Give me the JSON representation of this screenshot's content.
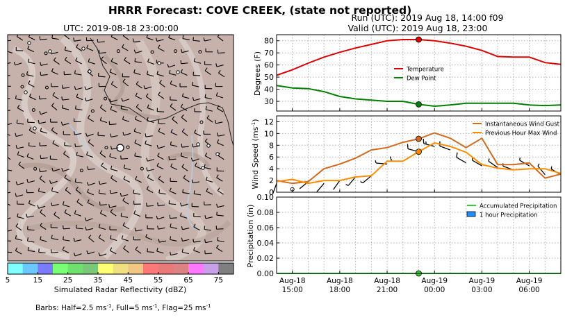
{
  "figure": {
    "title": "HRRR Forecast: COVE CREEK, (state not reported)",
    "run_label": "Run (UTC): 2019 Aug 18, 14:00 f09",
    "valid_label": "Valid (UTC): 2019 Aug 18, 23:00"
  },
  "map": {
    "title": "UTC: 2019-08-18 23:00:00",
    "colorbar_label": "Simulated Radar Reflectivity (dBZ)",
    "colorbar_ticks": [
      "5",
      "15",
      "25",
      "35",
      "45",
      "55",
      "65",
      "75"
    ],
    "colorbar_colors": [
      "#80ffff",
      "#6ac8ff",
      "#7b7bff",
      "#79ff73",
      "#6ee06e",
      "#78c878",
      "#ffff73",
      "#f0e082",
      "#f0c882",
      "#ff7878",
      "#ea7a7a",
      "#dc8282",
      "#ff78ff",
      "#c8a0e8",
      "#7f7f7f"
    ],
    "barbs_note": "Barbs: Half=2.5 ms",
    "barbs_note_mid": ", Full=5 ms",
    "barbs_note_end": ", Flag=25 ms",
    "barbs_sup": "-1"
  },
  "x_tick_labels": [
    {
      "line1": "Aug-18",
      "line2": "15:00"
    },
    {
      "line1": "Aug-18",
      "line2": "18:00"
    },
    {
      "line1": "Aug-18",
      "line2": "21:00"
    },
    {
      "line1": "Aug-19",
      "line2": "00:00"
    },
    {
      "line1": "Aug-19",
      "line2": "03:00"
    },
    {
      "line1": "Aug-19",
      "line2": "06:00"
    }
  ],
  "colors": {
    "temperature": "#dd0000",
    "dew_point": "#008000",
    "wind_gust": "#d2691e",
    "max_wind": "#ff8c00",
    "accum_precip": "#33cc33",
    "hourly_precip": "#1e90ff"
  },
  "chart_data": [
    {
      "type": "line",
      "panel": "temperature",
      "x": [
        "2019-08-18 14:00",
        "2019-08-18 15:00",
        "2019-08-18 16:00",
        "2019-08-18 17:00",
        "2019-08-18 18:00",
        "2019-08-18 19:00",
        "2019-08-18 20:00",
        "2019-08-18 21:00",
        "2019-08-18 22:00",
        "2019-08-18 23:00",
        "2019-08-19 00:00",
        "2019-08-19 01:00",
        "2019-08-19 02:00",
        "2019-08-19 03:00",
        "2019-08-19 04:00",
        "2019-08-19 05:00",
        "2019-08-19 06:00",
        "2019-08-19 07:00",
        "2019-08-19 08:00"
      ],
      "ylabel": "Degrees (F)",
      "ylim": [
        22,
        85
      ],
      "yticks": [
        30,
        40,
        50,
        60,
        70,
        80
      ],
      "grid": true,
      "legend": "center",
      "highlight_x": "2019-08-18 23:00",
      "series": [
        {
          "name": "Temperature",
          "values": [
            51.5,
            56,
            61.5,
            66.5,
            70.5,
            74,
            77,
            80,
            81,
            81,
            80,
            78,
            75.5,
            72,
            67,
            66.5,
            66.5,
            62,
            60.5
          ]
        },
        {
          "name": "Dew Point",
          "values": [
            43,
            41,
            40.5,
            38,
            34,
            32,
            31,
            30,
            30,
            27.5,
            26,
            27,
            28.5,
            28.5,
            28.5,
            28.5,
            27,
            26.5,
            27
          ]
        }
      ]
    },
    {
      "type": "line",
      "panel": "wind",
      "x": [
        "2019-08-18 14:00",
        "2019-08-18 15:00",
        "2019-08-18 16:00",
        "2019-08-18 17:00",
        "2019-08-18 18:00",
        "2019-08-18 19:00",
        "2019-08-18 20:00",
        "2019-08-18 21:00",
        "2019-08-18 22:00",
        "2019-08-18 23:00",
        "2019-08-19 00:00",
        "2019-08-19 01:00",
        "2019-08-19 02:00",
        "2019-08-19 03:00",
        "2019-08-19 04:00",
        "2019-08-19 05:00",
        "2019-08-19 06:00",
        "2019-08-19 07:00",
        "2019-08-19 08:00"
      ],
      "ylabel": "Wind Speed (ms",
      "ylabel_sup": "-1",
      "ylabel_end": ")",
      "ylim": [
        0,
        13
      ],
      "yticks": [
        0,
        2,
        4,
        6,
        8,
        10,
        12
      ],
      "grid": true,
      "legend": "top-right",
      "highlight_x": "2019-08-18 23:00",
      "series": [
        {
          "name": "Instantaneous Wind Gust",
          "values": [
            2,
            1.5,
            1.8,
            4,
            4.8,
            5.8,
            7.2,
            7.6,
            8.5,
            9.1,
            10.1,
            9.2,
            7.6,
            9.2,
            4.7,
            4.7,
            5,
            2.4,
            3.1
          ]
        },
        {
          "name": "Previous Hour Max Wind",
          "values": [
            1.8,
            2.2,
            1.5,
            2,
            2,
            2.6,
            2.8,
            5.3,
            5.3,
            6.9,
            8.4,
            7.8,
            6.8,
            4.7,
            4.1,
            3.8,
            4,
            4,
            3.2
          ]
        }
      ],
      "barbs": [
        {
          "x": "2019-08-18 14:00",
          "speed": 1.5,
          "dir": 200
        },
        {
          "x": "2019-08-18 15:00",
          "speed": 0.5,
          "dir": 0
        },
        {
          "x": "2019-08-18 16:00",
          "speed": 1.8,
          "dir": 230
        },
        {
          "x": "2019-08-18 17:00",
          "speed": 1.5,
          "dir": 220
        },
        {
          "x": "2019-08-18 18:00",
          "speed": 2,
          "dir": 215
        },
        {
          "x": "2019-08-18 19:00",
          "speed": 2.6,
          "dir": 220
        },
        {
          "x": "2019-08-18 20:00",
          "speed": 2.8,
          "dir": 230
        },
        {
          "x": "2019-08-18 21:00",
          "speed": 4.8,
          "dir": 275
        },
        {
          "x": "2019-08-18 22:00",
          "speed": 5.3,
          "dir": 270
        },
        {
          "x": "2019-08-18 23:00",
          "speed": 6.9,
          "dir": 285
        },
        {
          "x": "2019-08-19 00:00",
          "speed": 7.8,
          "dir": 285
        },
        {
          "x": "2019-08-19 01:00",
          "speed": 7.2,
          "dir": 290
        },
        {
          "x": "2019-08-19 02:00",
          "speed": 5,
          "dir": 300
        },
        {
          "x": "2019-08-19 03:00",
          "speed": 4.5,
          "dir": 300
        },
        {
          "x": "2019-08-19 04:00",
          "speed": 4.2,
          "dir": 305
        },
        {
          "x": "2019-08-19 05:00",
          "speed": 3.8,
          "dir": 290
        },
        {
          "x": "2019-08-19 06:00",
          "speed": 4.5,
          "dir": 300
        },
        {
          "x": "2019-08-19 07:00",
          "speed": 3,
          "dir": 320
        },
        {
          "x": "2019-08-19 08:00",
          "speed": 3,
          "dir": 300
        }
      ]
    },
    {
      "type": "area",
      "panel": "precipitation",
      "x": [
        "2019-08-18 14:00",
        "2019-08-18 15:00",
        "2019-08-18 16:00",
        "2019-08-18 17:00",
        "2019-08-18 18:00",
        "2019-08-18 19:00",
        "2019-08-18 20:00",
        "2019-08-18 21:00",
        "2019-08-18 22:00",
        "2019-08-18 23:00",
        "2019-08-19 00:00",
        "2019-08-19 01:00",
        "2019-08-19 02:00",
        "2019-08-19 03:00",
        "2019-08-19 04:00",
        "2019-08-19 05:00",
        "2019-08-19 06:00",
        "2019-08-19 07:00",
        "2019-08-19 08:00"
      ],
      "ylabel": "Precipitation (in)",
      "ylim": [
        0,
        0.1
      ],
      "ytick_labels": [
        "0.00",
        "0.02",
        "0.04",
        "0.06",
        "0.08",
        "0.10"
      ],
      "grid": true,
      "legend": "top-right",
      "highlight_x": "2019-08-18 23:00",
      "series": [
        {
          "name": "Accumulated Precipitation",
          "values": [
            0,
            0,
            0,
            0,
            0,
            0,
            0,
            0,
            0,
            0,
            0,
            0,
            0,
            0,
            0,
            0,
            0,
            0,
            0
          ]
        },
        {
          "name": "1 hour Precipitation",
          "values": [
            0,
            0,
            0,
            0,
            0,
            0,
            0,
            0,
            0,
            0,
            0,
            0,
            0,
            0,
            0,
            0,
            0,
            0,
            0
          ]
        }
      ]
    }
  ]
}
